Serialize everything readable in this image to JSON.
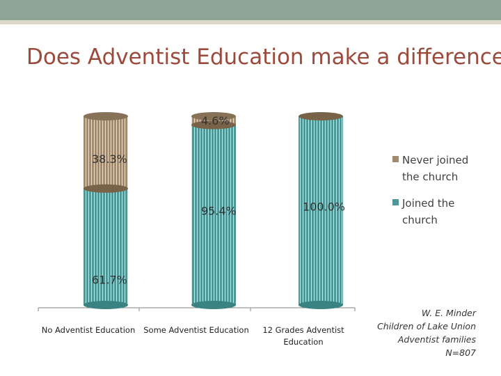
{
  "slide": {
    "title": "Does Adventist Education make a difference?"
  },
  "attribution": {
    "lines": [
      "W. E. Minder",
      "Children of Lake Union",
      "Adventist families",
      "N=807"
    ]
  },
  "colors": {
    "never_joined": "#a08b70",
    "joined": "#4f9696",
    "axis": "#808080"
  },
  "chart_data": {
    "type": "bar",
    "stacked": true,
    "percent_stacked": true,
    "bar_shape": "cylinder",
    "categories": [
      "No Adventist Education",
      "Some Adventist Education",
      "12 Grades Adventist Education"
    ],
    "series": [
      {
        "name": "Joined the church",
        "values": [
          61.7,
          95.4,
          100.0
        ],
        "labels": [
          "61.7%",
          "95.4%",
          "100.0%"
        ],
        "color": "#4f9696"
      },
      {
        "name": "Never joined the church",
        "values": [
          38.3,
          4.6,
          0
        ],
        "labels": [
          "38.3%",
          "4.6%",
          ""
        ],
        "color": "#a08b70"
      }
    ],
    "legend": "right",
    "ylim": [
      0,
      100
    ],
    "grid": false
  }
}
